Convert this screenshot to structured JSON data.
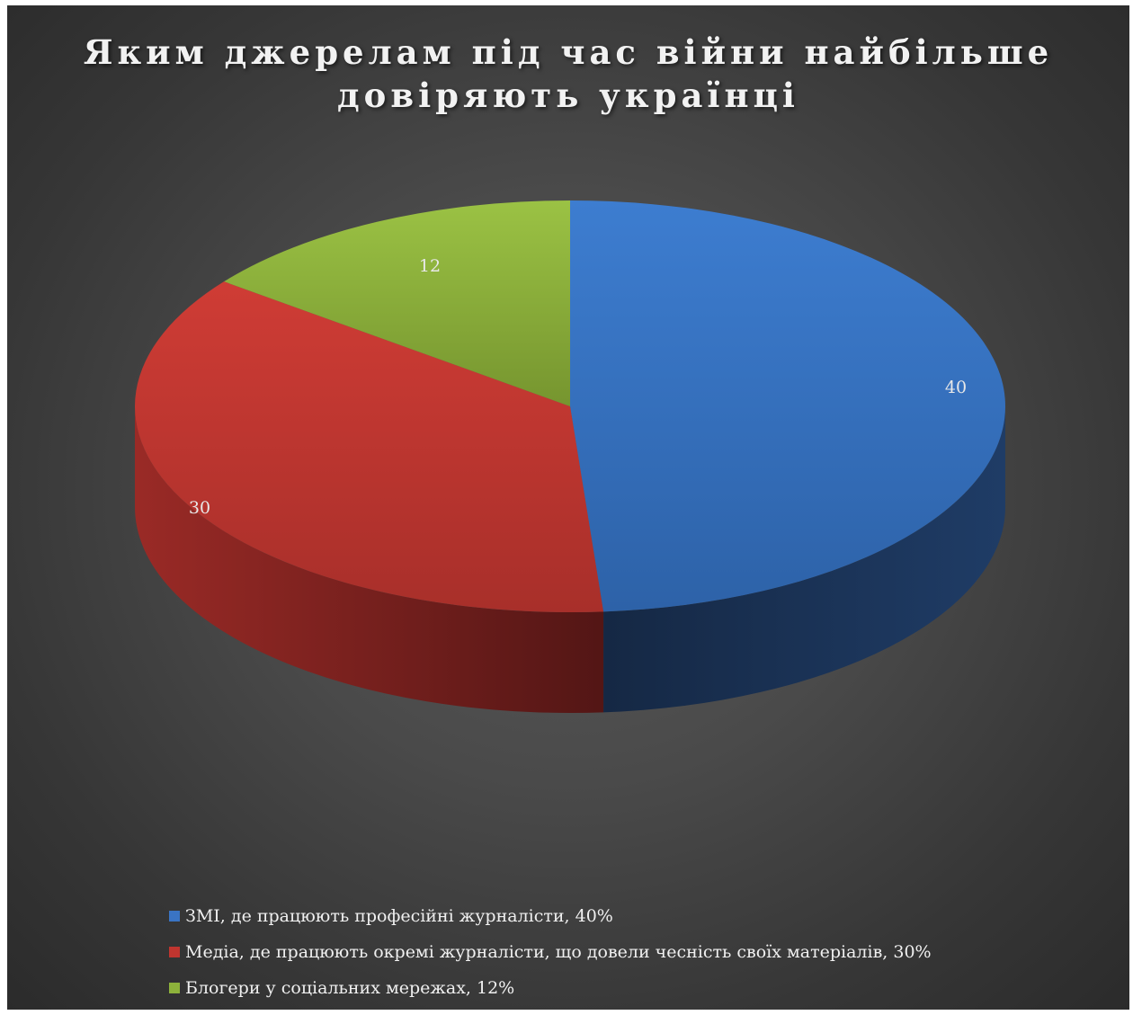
{
  "chart_data": {
    "type": "pie",
    "title": "Яким джерелам під час війни найбільше довіряють українці",
    "title_lines": [
      "Яким джерелам під час війни найбільше",
      "довіряють українці"
    ],
    "categories": [
      "ЗМІ, де працюють професійні журналісти, 40%",
      "Медіа, де працюють окремі журналісти, що довели чесність своїх матеріалів, 30%",
      "Блогери у соціальних мережах, 12%"
    ],
    "values": [
      40,
      30,
      12
    ],
    "data_labels": [
      "40",
      "30",
      "12"
    ],
    "colors": [
      "#3a74c4",
      "#c0352f",
      "#8db23b"
    ],
    "style": "3d",
    "legend_position": "bottom"
  }
}
